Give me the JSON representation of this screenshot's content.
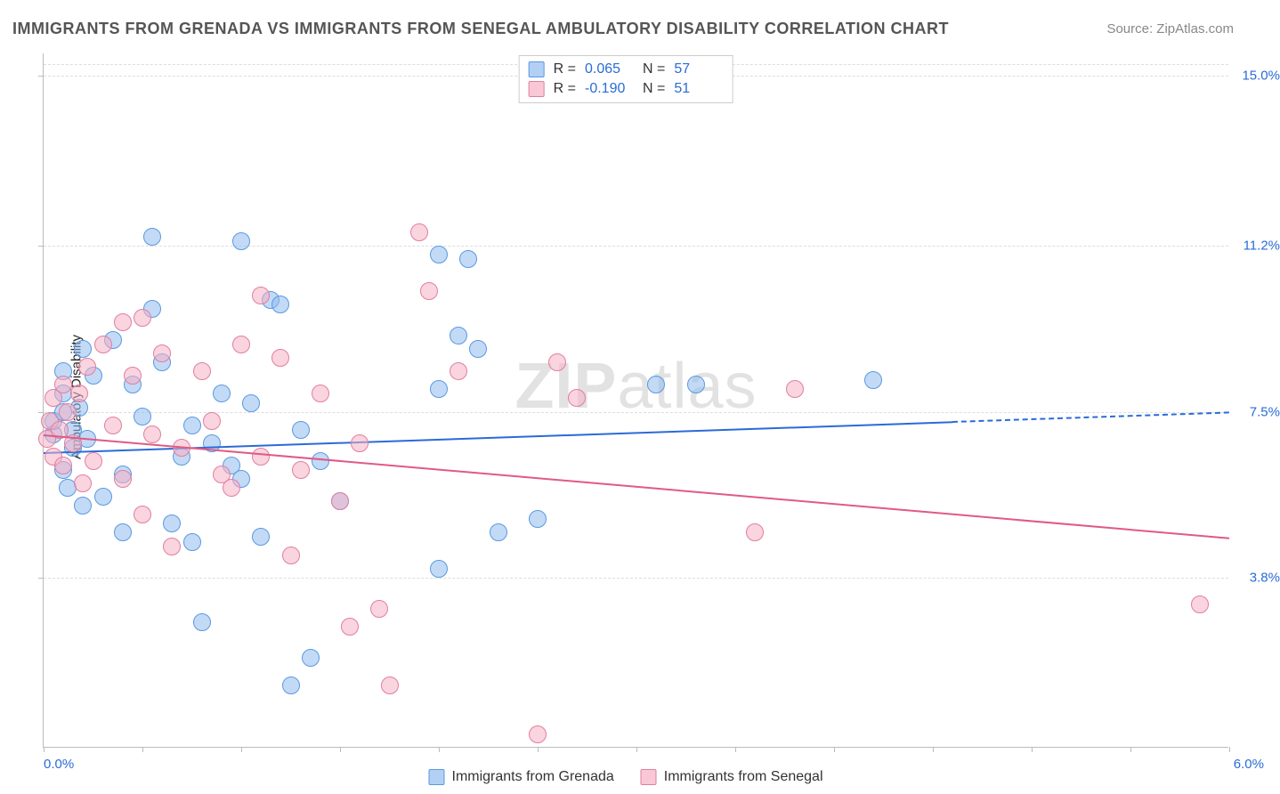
{
  "title": "IMMIGRANTS FROM GRENADA VS IMMIGRANTS FROM SENEGAL AMBULATORY DISABILITY CORRELATION CHART",
  "source": "Source: ZipAtlas.com",
  "watermark_a": "ZIP",
  "watermark_b": "atlas",
  "chart": {
    "type": "scatter",
    "ylabel": "Ambulatory Disability",
    "xlim": [
      0.0,
      6.0
    ],
    "ylim": [
      0.0,
      15.5
    ],
    "x_unit": "%",
    "y_ticks": [
      15.0,
      11.2,
      7.5,
      3.8
    ],
    "y_ticks_labels": [
      "15.0%",
      "11.2%",
      "7.5%",
      "3.8%"
    ],
    "x_ticks_labels": {
      "left": "0.0%",
      "right": "6.0%"
    },
    "grid_positions_y": [
      15.0,
      11.2,
      3.8,
      0.0
    ],
    "background_color": "#ffffff",
    "grid_color": "#dddddd",
    "series": [
      {
        "name": "Immigrants from Grenada",
        "color": "#5a99e0",
        "fill": "rgba(145,188,238,0.55)",
        "r": 0.065,
        "n": 57,
        "trend": {
          "y_at_xmin": 6.6,
          "y_at_xmax": 7.5,
          "solid_until_x": 4.6
        },
        "points": [
          [
            0.05,
            7.0
          ],
          [
            0.05,
            7.3
          ],
          [
            0.1,
            6.2
          ],
          [
            0.1,
            7.5
          ],
          [
            0.1,
            7.9
          ],
          [
            0.1,
            8.4
          ],
          [
            0.12,
            5.8
          ],
          [
            0.15,
            6.7
          ],
          [
            0.15,
            7.1
          ],
          [
            0.18,
            7.6
          ],
          [
            0.2,
            8.9
          ],
          [
            0.2,
            5.4
          ],
          [
            0.22,
            6.9
          ],
          [
            0.25,
            8.3
          ],
          [
            0.3,
            5.6
          ],
          [
            0.35,
            9.1
          ],
          [
            0.4,
            4.8
          ],
          [
            0.4,
            6.1
          ],
          [
            0.45,
            8.1
          ],
          [
            0.5,
            7.4
          ],
          [
            0.55,
            9.8
          ],
          [
            0.55,
            11.4
          ],
          [
            0.6,
            8.6
          ],
          [
            0.65,
            5.0
          ],
          [
            0.7,
            6.5
          ],
          [
            0.75,
            7.2
          ],
          [
            0.75,
            4.6
          ],
          [
            0.8,
            2.8
          ],
          [
            0.85,
            6.8
          ],
          [
            0.9,
            7.9
          ],
          [
            0.95,
            6.3
          ],
          [
            1.0,
            11.3
          ],
          [
            1.0,
            6.0
          ],
          [
            1.05,
            7.7
          ],
          [
            1.1,
            4.7
          ],
          [
            1.15,
            10.0
          ],
          [
            1.2,
            9.9
          ],
          [
            1.25,
            1.4
          ],
          [
            1.3,
            7.1
          ],
          [
            1.35,
            2.0
          ],
          [
            1.4,
            6.4
          ],
          [
            1.5,
            5.5
          ],
          [
            2.0,
            11.0
          ],
          [
            2.0,
            8.0
          ],
          [
            2.0,
            4.0
          ],
          [
            2.1,
            9.2
          ],
          [
            2.15,
            10.9
          ],
          [
            2.2,
            8.9
          ],
          [
            2.3,
            4.8
          ],
          [
            2.5,
            5.1
          ],
          [
            3.1,
            8.1
          ],
          [
            3.3,
            8.1
          ],
          [
            4.2,
            8.2
          ]
        ]
      },
      {
        "name": "Immigrants from Senegal",
        "color": "#e05a84",
        "fill": "rgba(246,176,196,0.55)",
        "r": -0.19,
        "n": 51,
        "trend": {
          "y_at_xmin": 7.0,
          "y_at_xmax": 4.7,
          "solid_until_x": 6.0
        },
        "points": [
          [
            0.02,
            6.9
          ],
          [
            0.03,
            7.3
          ],
          [
            0.05,
            6.5
          ],
          [
            0.05,
            7.8
          ],
          [
            0.08,
            7.1
          ],
          [
            0.1,
            6.3
          ],
          [
            0.1,
            8.1
          ],
          [
            0.12,
            7.5
          ],
          [
            0.15,
            6.8
          ],
          [
            0.18,
            7.9
          ],
          [
            0.2,
            5.9
          ],
          [
            0.22,
            8.5
          ],
          [
            0.25,
            6.4
          ],
          [
            0.3,
            9.0
          ],
          [
            0.35,
            7.2
          ],
          [
            0.4,
            9.5
          ],
          [
            0.4,
            6.0
          ],
          [
            0.45,
            8.3
          ],
          [
            0.5,
            9.6
          ],
          [
            0.5,
            5.2
          ],
          [
            0.55,
            7.0
          ],
          [
            0.6,
            8.8
          ],
          [
            0.65,
            4.5
          ],
          [
            0.7,
            6.7
          ],
          [
            0.8,
            8.4
          ],
          [
            0.85,
            7.3
          ],
          [
            0.9,
            6.1
          ],
          [
            0.95,
            5.8
          ],
          [
            1.0,
            9.0
          ],
          [
            1.1,
            10.1
          ],
          [
            1.1,
            6.5
          ],
          [
            1.2,
            8.7
          ],
          [
            1.25,
            4.3
          ],
          [
            1.3,
            6.2
          ],
          [
            1.4,
            7.9
          ],
          [
            1.5,
            5.5
          ],
          [
            1.55,
            2.7
          ],
          [
            1.6,
            6.8
          ],
          [
            1.7,
            3.1
          ],
          [
            1.75,
            1.4
          ],
          [
            1.9,
            11.5
          ],
          [
            1.95,
            10.2
          ],
          [
            2.1,
            8.4
          ],
          [
            2.5,
            0.3
          ],
          [
            2.6,
            8.6
          ],
          [
            2.7,
            7.8
          ],
          [
            3.6,
            4.8
          ],
          [
            3.8,
            8.0
          ],
          [
            5.85,
            3.2
          ]
        ]
      }
    ],
    "legend_top": [
      {
        "swatch": "blue",
        "r_label": "R =",
        "r": "0.065",
        "n_label": "N =",
        "n": "57"
      },
      {
        "swatch": "pink",
        "r_label": "R =",
        "r": "-0.190",
        "n_label": "N =",
        "n": "51"
      }
    ],
    "legend_bottom": [
      {
        "swatch": "blue",
        "label": "Immigrants from Grenada"
      },
      {
        "swatch": "pink",
        "label": "Immigrants from Senegal"
      }
    ]
  }
}
